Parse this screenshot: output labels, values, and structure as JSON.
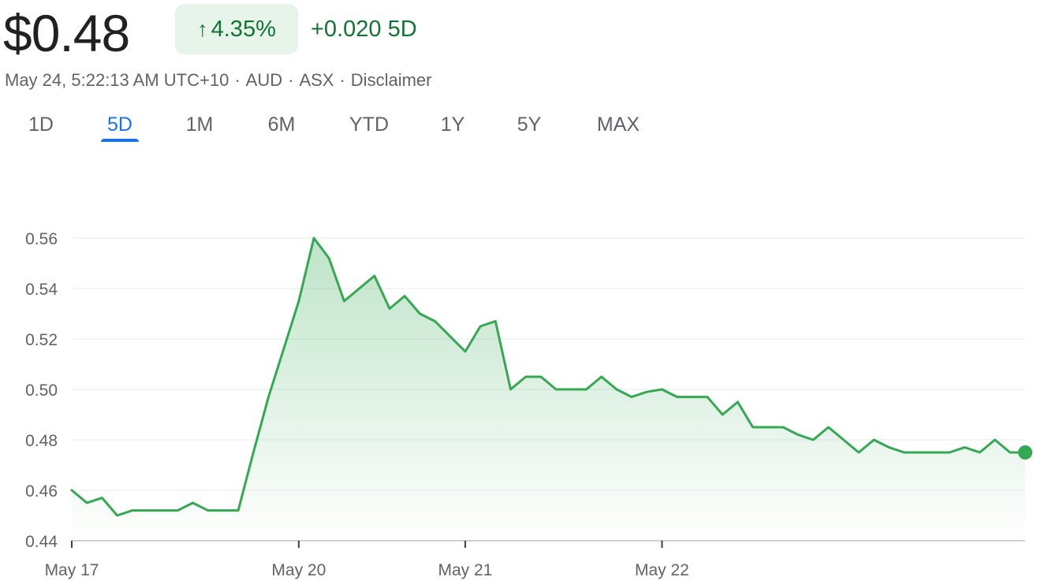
{
  "header": {
    "price": "$0.48",
    "change_pct": "4.35%",
    "change_arrow": "↑",
    "change_abs": "+0.020 5D",
    "meta": {
      "time": "May 24, 5:22:13 AM UTC+10",
      "currency": "AUD",
      "exchange": "ASX",
      "disclaimer": "Disclaimer",
      "separator": "·"
    }
  },
  "tabs": [
    {
      "label": "1D",
      "active": false
    },
    {
      "label": "5D",
      "active": true
    },
    {
      "label": "1M",
      "active": false
    },
    {
      "label": "6M",
      "active": false
    },
    {
      "label": "YTD",
      "active": false
    },
    {
      "label": "1Y",
      "active": false
    },
    {
      "label": "5Y",
      "active": false
    },
    {
      "label": "MAX",
      "active": false
    }
  ],
  "colors": {
    "line": "#34a853",
    "up_text": "#137333",
    "badge_bg": "#e6f4ea",
    "active_tab": "#1a73e8",
    "grid": "#e8eaed"
  },
  "chart_data": {
    "type": "area",
    "ylim": [
      0.44,
      0.56
    ],
    "y_ticks": [
      "0.44",
      "0.46",
      "0.48",
      "0.50",
      "0.52",
      "0.54",
      "0.56"
    ],
    "x_ticks": [
      {
        "label": "May 17",
        "x": 0
      },
      {
        "label": "May 20",
        "x": 15
      },
      {
        "label": "May 21",
        "x": 26
      },
      {
        "label": "May 22",
        "x": 39
      }
    ],
    "x_max": 63,
    "values": [
      0.46,
      0.455,
      0.457,
      0.45,
      0.452,
      0.452,
      0.452,
      0.452,
      0.455,
      0.452,
      0.452,
      0.452,
      0.475,
      0.497,
      0.516,
      0.535,
      0.56,
      0.552,
      0.535,
      0.54,
      0.545,
      0.532,
      0.537,
      0.53,
      0.527,
      0.521,
      0.515,
      0.525,
      0.527,
      0.5,
      0.505,
      0.505,
      0.5,
      0.5,
      0.5,
      0.505,
      0.5,
      0.497,
      0.499,
      0.5,
      0.497,
      0.497,
      0.497,
      0.49,
      0.495,
      0.485,
      0.485,
      0.485,
      0.482,
      0.48,
      0.485,
      0.48,
      0.475,
      0.48,
      0.477,
      0.475,
      0.475,
      0.475,
      0.475,
      0.477,
      0.475,
      0.48,
      0.475,
      0.475
    ],
    "last_point_marker": true,
    "grid": true
  }
}
